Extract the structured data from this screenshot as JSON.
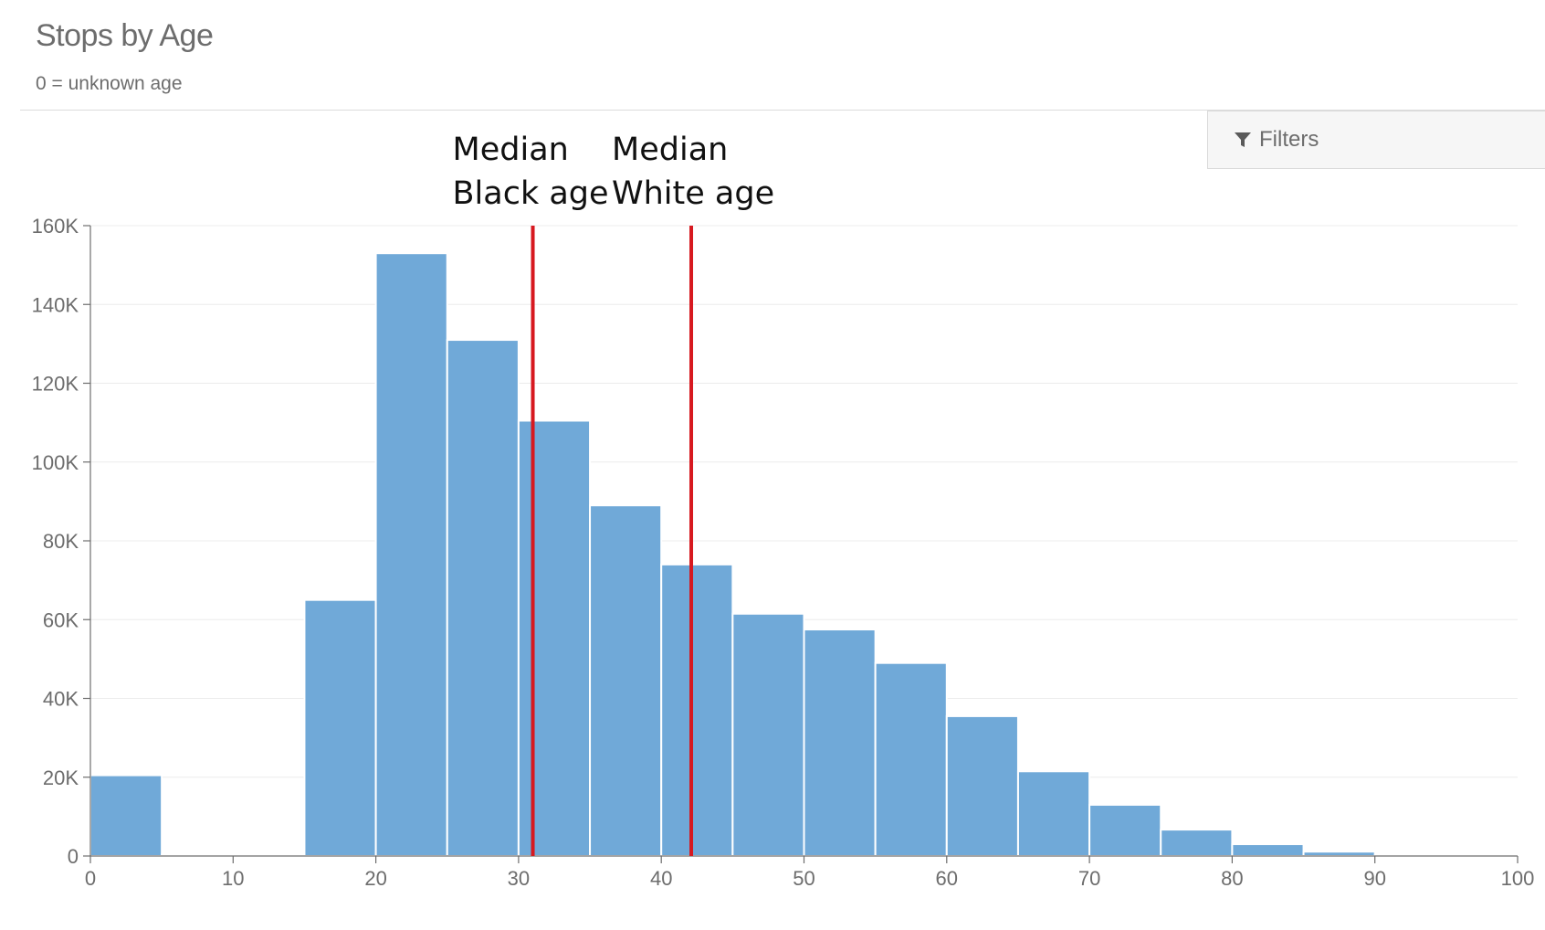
{
  "header": {
    "title": "Stops by Age",
    "subtitle": "0 = unknown age"
  },
  "filters": {
    "label": "Filters",
    "icon": "filter-icon"
  },
  "colors": {
    "bar": "#70a9d8",
    "median_line": "#d71920",
    "grid": "#ececec",
    "axis": "#6d6d6d"
  },
  "chart_data": {
    "type": "bar",
    "title": "Stops by Age",
    "subtitle": "0 = unknown age",
    "xlabel": "",
    "ylabel": "",
    "xlim": [
      0,
      100
    ],
    "ylim": [
      0,
      160000
    ],
    "bin_width": 5,
    "bins_start": [
      0,
      5,
      10,
      15,
      20,
      25,
      30,
      35,
      40,
      45,
      50,
      55,
      60,
      65,
      70,
      75,
      80,
      85,
      90,
      95
    ],
    "values": [
      20500,
      400,
      400,
      65000,
      153000,
      131000,
      110500,
      89000,
      74000,
      61500,
      57500,
      49000,
      35500,
      21500,
      13000,
      6700,
      3000,
      1100,
      300,
      300
    ],
    "x_ticks": [
      0,
      10,
      20,
      30,
      40,
      50,
      60,
      70,
      80,
      90,
      100
    ],
    "x_tick_labels": [
      "0",
      "10",
      "20",
      "30",
      "40",
      "50",
      "60",
      "70",
      "80",
      "90",
      "100"
    ],
    "y_ticks": [
      0,
      20000,
      40000,
      60000,
      80000,
      100000,
      120000,
      140000,
      160000
    ],
    "y_tick_labels": [
      "0",
      "20K",
      "40K",
      "60K",
      "80K",
      "100K",
      "120K",
      "140K",
      "160K"
    ],
    "grid": true,
    "annotations": [
      {
        "x": 31,
        "lines": [
          "Median",
          "Black age"
        ]
      },
      {
        "x": 42.1,
        "lines": [
          "Median",
          "White age"
        ]
      }
    ]
  }
}
